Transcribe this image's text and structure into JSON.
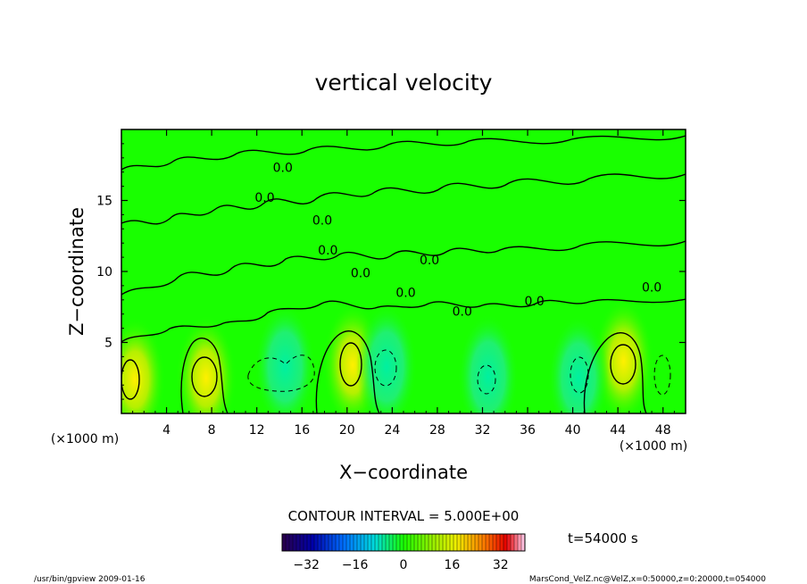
{
  "chart_data": {
    "type": "heatmap",
    "title": "vertical velocity",
    "xlabel": "X−coordinate",
    "ylabel": "Z−coordinate",
    "x_unit": "(×1000 m)",
    "y_unit": "(×1000 m)",
    "xlim": [
      0,
      50
    ],
    "ylim": [
      0,
      20
    ],
    "x_ticks": [
      "4",
      "8",
      "12",
      "16",
      "20",
      "24",
      "28",
      "32",
      "36",
      "40",
      "44",
      "48"
    ],
    "y_ticks": [
      "5",
      "10",
      "15"
    ],
    "contour_interval": "CONTOUR INTERVAL = 5.000E+00",
    "contour_labels": [
      "0.0"
    ],
    "colorbar": {
      "ticks": [
        "−32",
        "−16",
        "0",
        "16",
        "32"
      ],
      "range": [
        -40,
        40
      ]
    },
    "time_label": "t=54000 s",
    "features": [
      {
        "x": 20.5,
        "z": 3.4,
        "sign": "positive",
        "note": "strong updraft core"
      },
      {
        "x": 44.5,
        "z": 3.7,
        "sign": "positive"
      },
      {
        "x": 7.5,
        "z": 2.5,
        "sign": "positive"
      },
      {
        "x": 1.2,
        "z": 2.4,
        "sign": "positive"
      },
      {
        "x": 14.5,
        "z": 3.3,
        "sign": "negative"
      },
      {
        "x": 23.5,
        "z": 3.3,
        "sign": "negative"
      },
      {
        "x": 32.5,
        "z": 2.6,
        "sign": "negative"
      },
      {
        "x": 40.5,
        "z": 2.5,
        "sign": "negative"
      }
    ]
  },
  "footer": {
    "left": "/usr/bin/gpview   2009-01-16",
    "right": "MarsCond_VelZ.nc@VelZ,x=0:50000,z=0:20000,t=054000"
  },
  "colors": {
    "field": "#19ff00",
    "axis": "#000000"
  }
}
